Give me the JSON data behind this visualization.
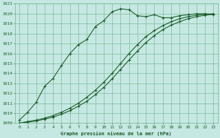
{
  "title": "Graphe pression niveau de la mer (hPa)",
  "bg_color": "#c6e8e2",
  "grid_color": "#7ab89a",
  "line_color": "#1a5c2a",
  "xlim": [
    0,
    23
  ],
  "ylim": [
    1009,
    1021
  ],
  "yticks": [
    1009,
    1010,
    1011,
    1012,
    1013,
    1014,
    1015,
    1016,
    1017,
    1018,
    1019,
    1020,
    1021
  ],
  "xticks": [
    0,
    1,
    2,
    3,
    4,
    5,
    6,
    7,
    8,
    9,
    10,
    11,
    12,
    13,
    14,
    15,
    16,
    17,
    18,
    19,
    20,
    21,
    22,
    23
  ],
  "line1_x": [
    0,
    1,
    2,
    3,
    4,
    5,
    6,
    7,
    8,
    9,
    10,
    11,
    12,
    13,
    14,
    15,
    16,
    17,
    18,
    19,
    20,
    21,
    22,
    23
  ],
  "line1_y": [
    1009.3,
    1010.1,
    1011.1,
    1012.7,
    1013.5,
    1014.8,
    1016.0,
    1016.9,
    1017.4,
    1018.7,
    1019.3,
    1020.2,
    1020.5,
    1020.4,
    1019.8,
    1019.7,
    1019.9,
    1019.6,
    1019.6,
    1019.8,
    1019.9,
    1020.0,
    1020.0,
    1019.9
  ],
  "line2_x": [
    0,
    1,
    2,
    3,
    4,
    5,
    6,
    7,
    8,
    9,
    10,
    11,
    12,
    13,
    14,
    15,
    16,
    17,
    18,
    19,
    20,
    21,
    22,
    23
  ],
  "line2_y": [
    1009.0,
    1009.15,
    1009.3,
    1009.5,
    1009.75,
    1010.1,
    1010.5,
    1011.0,
    1011.6,
    1012.3,
    1013.1,
    1014.0,
    1015.0,
    1016.0,
    1016.9,
    1017.7,
    1018.3,
    1018.8,
    1019.2,
    1019.5,
    1019.7,
    1019.85,
    1019.95,
    1020.0
  ],
  "line3_x": [
    0,
    1,
    2,
    3,
    4,
    5,
    6,
    7,
    8,
    9,
    10,
    11,
    12,
    13,
    14,
    15,
    16,
    17,
    18,
    19,
    20,
    21,
    22,
    23
  ],
  "line3_y": [
    1009.0,
    1009.1,
    1009.2,
    1009.4,
    1009.6,
    1009.9,
    1010.25,
    1010.7,
    1011.2,
    1011.85,
    1012.6,
    1013.45,
    1014.4,
    1015.35,
    1016.25,
    1017.1,
    1017.8,
    1018.4,
    1018.85,
    1019.2,
    1019.5,
    1019.7,
    1019.85,
    1019.95
  ]
}
